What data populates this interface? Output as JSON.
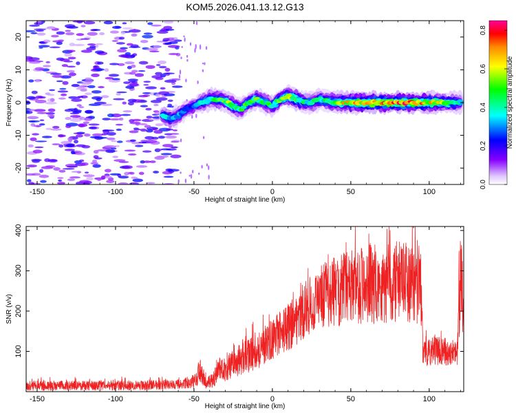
{
  "title": "KOM5.2026.041.13.12.G13",
  "chart_data": [
    {
      "type": "heatmap",
      "title": "KOM5.2026.041.13.12.G13",
      "xlabel": "Height of straight line (km)",
      "ylabel": "Frequency (Hz)",
      "xlim": [
        -157,
        122
      ],
      "ylim": [
        -25,
        25
      ],
      "xticks": [
        -150,
        -100,
        -50,
        0,
        50,
        100
      ],
      "yticks": [
        -20,
        -10,
        0,
        10,
        20
      ],
      "colorbar": {
        "label": "Normalized spectral amplitude",
        "range": [
          0,
          0.85
        ],
        "ticks": [
          "0.0",
          "0.2",
          "0.4",
          "0.6",
          "0.8"
        ],
        "tick_values": [
          0,
          0.2,
          0.4,
          0.6,
          0.8
        ],
        "colormap": [
          "#ffffff",
          "#cc99ff",
          "#8800ff",
          "#0000ff",
          "#00ffff",
          "#00ff00",
          "#ffff00",
          "#ff8800",
          "#ff0000",
          "#ff00aa"
        ]
      },
      "noise_region_x": [
        -157,
        -60
      ],
      "noise_level": [
        0.05,
        0.25
      ],
      "ridge": {
        "x": [
          -70,
          -65,
          -60,
          -55,
          -50,
          -45,
          -40,
          -35,
          -30,
          -25,
          -20,
          -15,
          -10,
          -5,
          0,
          5,
          10,
          15,
          20,
          25,
          30,
          35,
          40,
          50,
          60,
          70,
          80,
          90,
          100,
          110,
          120
        ],
        "freq": [
          -4,
          -5,
          -4,
          -2,
          -1,
          0,
          1,
          1,
          0.5,
          -1,
          -2,
          0,
          1,
          0,
          -1,
          1,
          2,
          1,
          0,
          0,
          1,
          0.5,
          0,
          0,
          0,
          0,
          0,
          0,
          0,
          0,
          0
        ],
        "amplitude": [
          0.3,
          0.35,
          0.3,
          0.25,
          0.25,
          0.35,
          0.4,
          0.45,
          0.5,
          0.45,
          0.4,
          0.45,
          0.45,
          0.4,
          0.4,
          0.45,
          0.5,
          0.5,
          0.4,
          0.35,
          0.4,
          0.4,
          0.5,
          0.6,
          0.65,
          0.7,
          0.7,
          0.65,
          0.6,
          0.5,
          0.4
        ]
      }
    },
    {
      "type": "line",
      "xlabel": "Height of straight line (km)",
      "ylabel": "SNR (v/v)",
      "xlim": [
        -157,
        122
      ],
      "ylim": [
        0,
        410
      ],
      "xticks": [
        -150,
        -100,
        -50,
        0,
        50,
        100
      ],
      "yticks": [
        100,
        200,
        300,
        400
      ],
      "color": "#ee2222",
      "envelope": {
        "x": [
          -157,
          -120,
          -80,
          -60,
          -50,
          -46,
          -42,
          -38,
          -34,
          -30,
          -20,
          -10,
          0,
          10,
          20,
          30,
          40,
          50,
          60,
          70,
          80,
          90,
          95,
          96,
          100,
          110,
          118,
          119,
          122
        ],
        "mean": [
          15,
          15,
          16,
          18,
          22,
          50,
          20,
          25,
          60,
          55,
          80,
          100,
          130,
          160,
          200,
          230,
          250,
          260,
          270,
          265,
          275,
          270,
          260,
          90,
          100,
          100,
          95,
          230,
          270
        ],
        "spread": [
          12,
          12,
          12,
          12,
          15,
          30,
          15,
          20,
          25,
          30,
          40,
          45,
          50,
          60,
          70,
          80,
          90,
          95,
          100,
          100,
          100,
          100,
          100,
          30,
          35,
          35,
          30,
          120,
          110
        ]
      }
    }
  ]
}
